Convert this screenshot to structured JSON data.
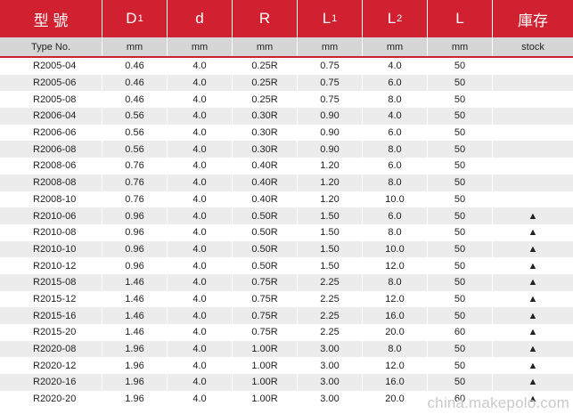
{
  "header": {
    "cols": [
      {
        "main": "型 號",
        "sub": ""
      },
      {
        "main": "D",
        "sub": "1"
      },
      {
        "main": "d",
        "sub": ""
      },
      {
        "main": "R",
        "sub": ""
      },
      {
        "main": "L",
        "sub": "1"
      },
      {
        "main": "L",
        "sub": "2"
      },
      {
        "main": "L",
        "sub": ""
      },
      {
        "main": "庫存",
        "sub": ""
      }
    ],
    "units": [
      "Type No.",
      "mm",
      "mm",
      "mm",
      "mm",
      "mm",
      "mm",
      "stock"
    ]
  },
  "rows": [
    [
      "R2005-04",
      "0.46",
      "4.0",
      "0.25R",
      "0.75",
      "4.0",
      "50",
      ""
    ],
    [
      "R2005-06",
      "0.46",
      "4.0",
      "0.25R",
      "0.75",
      "6.0",
      "50",
      ""
    ],
    [
      "R2005-08",
      "0.46",
      "4.0",
      "0.25R",
      "0.75",
      "8.0",
      "50",
      ""
    ],
    [
      "R2006-04",
      "0.56",
      "4.0",
      "0.30R",
      "0.90",
      "4.0",
      "50",
      ""
    ],
    [
      "R2006-06",
      "0.56",
      "4.0",
      "0.30R",
      "0.90",
      "6.0",
      "50",
      ""
    ],
    [
      "R2006-08",
      "0.56",
      "4.0",
      "0.30R",
      "0.90",
      "8.0",
      "50",
      ""
    ],
    [
      "R2008-06",
      "0.76",
      "4.0",
      "0.40R",
      "1.20",
      "6.0",
      "50",
      ""
    ],
    [
      "R2008-08",
      "0.76",
      "4.0",
      "0.40R",
      "1.20",
      "8.0",
      "50",
      ""
    ],
    [
      "R2008-10",
      "0.76",
      "4.0",
      "0.40R",
      "1.20",
      "10.0",
      "50",
      ""
    ],
    [
      "R2010-06",
      "0.96",
      "4.0",
      "0.50R",
      "1.50",
      "6.0",
      "50",
      "▲"
    ],
    [
      "R2010-08",
      "0.96",
      "4.0",
      "0.50R",
      "1.50",
      "8.0",
      "50",
      "▲"
    ],
    [
      "R2010-10",
      "0.96",
      "4.0",
      "0.50R",
      "1.50",
      "10.0",
      "50",
      "▲"
    ],
    [
      "R2010-12",
      "0.96",
      "4.0",
      "0.50R",
      "1.50",
      "12.0",
      "50",
      "▲"
    ],
    [
      "R2015-08",
      "1.46",
      "4.0",
      "0.75R",
      "2.25",
      "8.0",
      "50",
      "▲"
    ],
    [
      "R2015-12",
      "1.46",
      "4.0",
      "0.75R",
      "2.25",
      "12.0",
      "50",
      "▲"
    ],
    [
      "R2015-16",
      "1.46",
      "4.0",
      "0.75R",
      "2.25",
      "16.0",
      "50",
      "▲"
    ],
    [
      "R2015-20",
      "1.46",
      "4.0",
      "0.75R",
      "2.25",
      "20.0",
      "60",
      "▲"
    ],
    [
      "R2020-08",
      "1.96",
      "4.0",
      "1.00R",
      "3.00",
      "8.0",
      "50",
      "▲"
    ],
    [
      "R2020-12",
      "1.96",
      "4.0",
      "1.00R",
      "3.00",
      "12.0",
      "50",
      "▲"
    ],
    [
      "R2020-16",
      "1.96",
      "4.0",
      "1.00R",
      "3.00",
      "16.0",
      "50",
      "▲"
    ],
    [
      "R2020-20",
      "1.96",
      "4.0",
      "1.00R",
      "3.00",
      "20.0",
      "60",
      "▲"
    ]
  ],
  "watermark": "china.makepolo.com",
  "colors": {
    "header_red": "#d1202f",
    "unit_gray": "#d6d6d6",
    "stripe_gray": "#ececec"
  }
}
